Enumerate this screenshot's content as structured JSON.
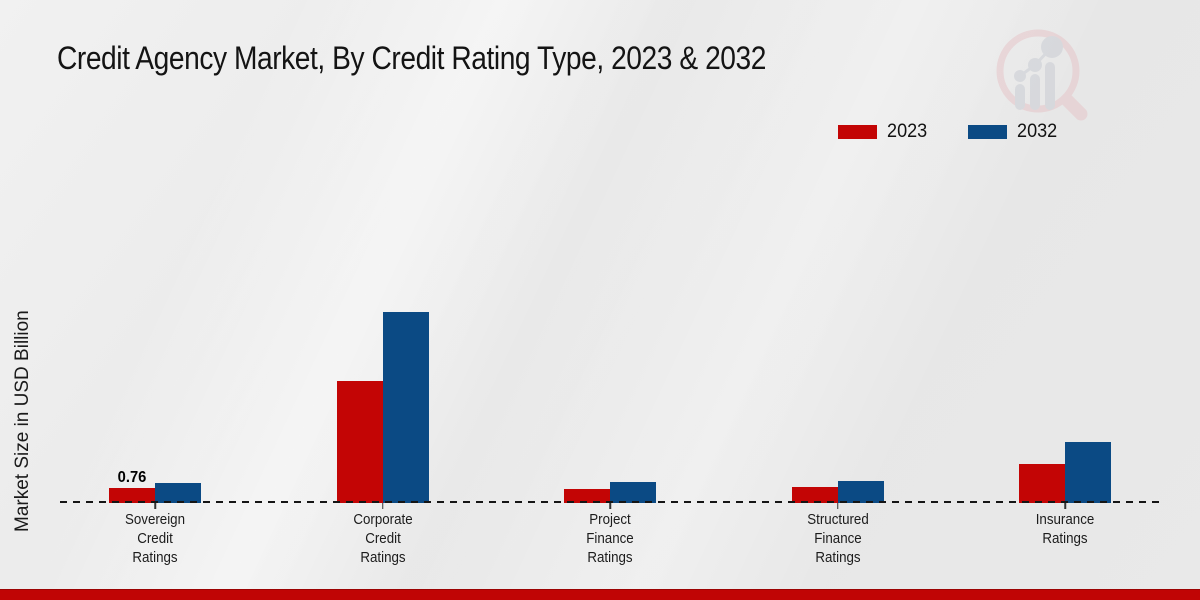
{
  "header": {
    "title": "Credit Agency Market, By Credit Rating Type, 2023 & 2032",
    "watermark_icon": "magnifier-bar-chart-logo"
  },
  "y_axis": {
    "label": "Market Size in USD Billion"
  },
  "legend": {
    "items": [
      {
        "label": "2023",
        "color": "#c30505"
      },
      {
        "label": "2032",
        "color": "#0b4a84"
      }
    ]
  },
  "colors": {
    "series_2023": "#c30505",
    "series_2032": "#0b4a84",
    "footer_band": "#c00505",
    "baseline": "#151515"
  },
  "chart_data": {
    "type": "bar",
    "title": "Credit Agency Market, By Credit Rating Type, 2023 & 2032",
    "ylabel": "Market Size in USD Billion",
    "xlabel": "",
    "ylim": [
      0,
      10
    ],
    "grid": false,
    "legend_position": "top-right",
    "baseline_style": "dashed",
    "categories": [
      "Sovereign Credit Ratings",
      "Corporate Credit Ratings",
      "Project Finance Ratings",
      "Structured Finance Ratings",
      "Insurance Ratings"
    ],
    "category_label_lines": [
      [
        "Sovereign",
        "Credit",
        "Ratings"
      ],
      [
        "Corporate",
        "Credit",
        "Ratings"
      ],
      [
        "Project",
        "Finance",
        "Ratings"
      ],
      [
        "Structured",
        "Finance",
        "Ratings"
      ],
      [
        "Insurance",
        "Ratings"
      ]
    ],
    "series": [
      {
        "name": "2023",
        "color": "#c30505",
        "values": [
          0.76,
          6.2,
          0.7,
          0.8,
          2.0
        ]
      },
      {
        "name": "2032",
        "color": "#0b4a84",
        "values": [
          1.0,
          9.7,
          1.05,
          1.1,
          3.1
        ]
      }
    ],
    "data_labels": [
      {
        "series_index": 0,
        "category_index": 0,
        "text": "0.76"
      }
    ]
  }
}
